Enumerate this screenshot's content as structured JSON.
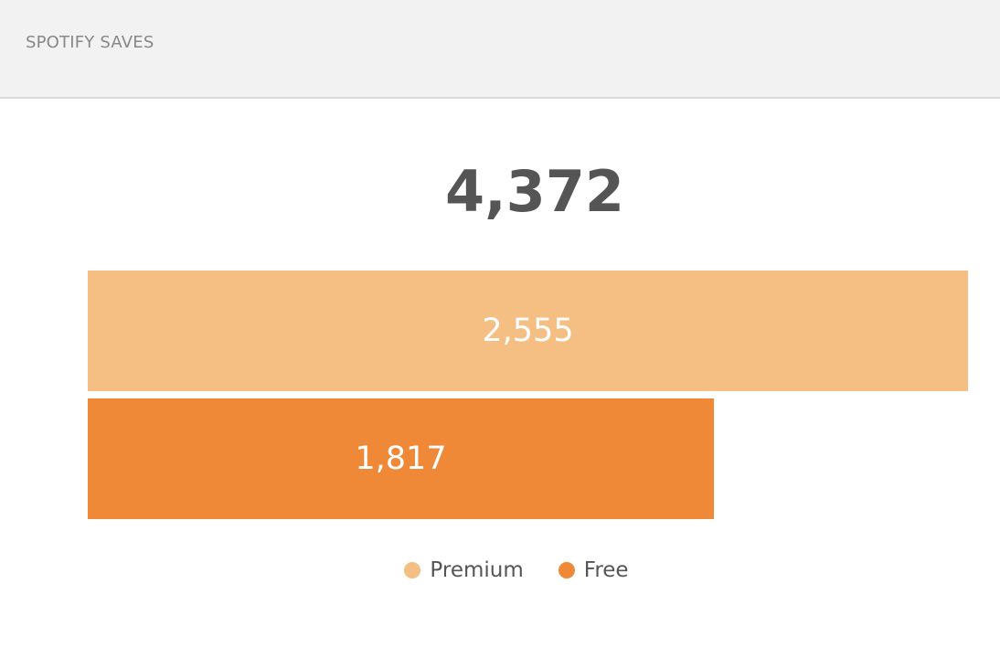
{
  "header": {
    "title": "SPOTIFY SAVES"
  },
  "total": "4,372",
  "colors": {
    "premium": "#f5bf84",
    "free": "#ef8837"
  },
  "chart_data": {
    "type": "bar",
    "orientation": "horizontal",
    "categories": [
      "Premium",
      "Free"
    ],
    "values": [
      2555,
      1817
    ],
    "value_labels": [
      "2,555",
      "1,817"
    ],
    "total": 4372,
    "legend": {
      "placement": "bottom-center",
      "entries": [
        "Premium",
        "Free"
      ]
    },
    "grid": false
  }
}
